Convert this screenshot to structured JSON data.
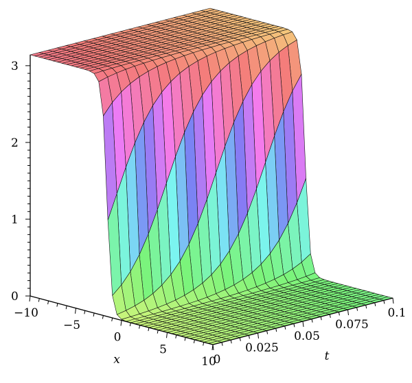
{
  "chart_data": {
    "type": "surface3d",
    "title": "",
    "xlabel": "x",
    "ylabel": "t",
    "zlabel": "",
    "x_range": [
      -10,
      10
    ],
    "t_range": [
      0,
      0.1
    ],
    "z_range": [
      0,
      3.14159
    ],
    "x_ticks": [
      {
        "value": -10,
        "label": "−10"
      },
      {
        "value": -5,
        "label": "−5"
      },
      {
        "value": 0,
        "label": "0"
      },
      {
        "value": 5,
        "label": "5"
      },
      {
        "value": 10,
        "label": "10"
      }
    ],
    "t_ticks": [
      {
        "value": 0,
        "label": "0"
      },
      {
        "value": 0.025,
        "label": "0.025"
      },
      {
        "value": 0.05,
        "label": "0.05"
      },
      {
        "value": 0.075,
        "label": "0.075"
      },
      {
        "value": 0.1,
        "label": "0.1"
      }
    ],
    "z_ticks": [
      {
        "value": 0,
        "label": "0"
      },
      {
        "value": 1,
        "label": "1"
      },
      {
        "value": 2,
        "label": "2"
      },
      {
        "value": 3,
        "label": "3"
      }
    ],
    "surface": "kink profile: z ≈ π for x ≲ −1.6, drops steeply to 0 near x ≈ −1.6 … +0.4, front translating toward larger x as t increases",
    "grid": {
      "x_cells": 40,
      "t_cells": 20
    },
    "colormap": "rainbow shading (blue/purple high plateau, green/yellow/red low plateau)"
  }
}
